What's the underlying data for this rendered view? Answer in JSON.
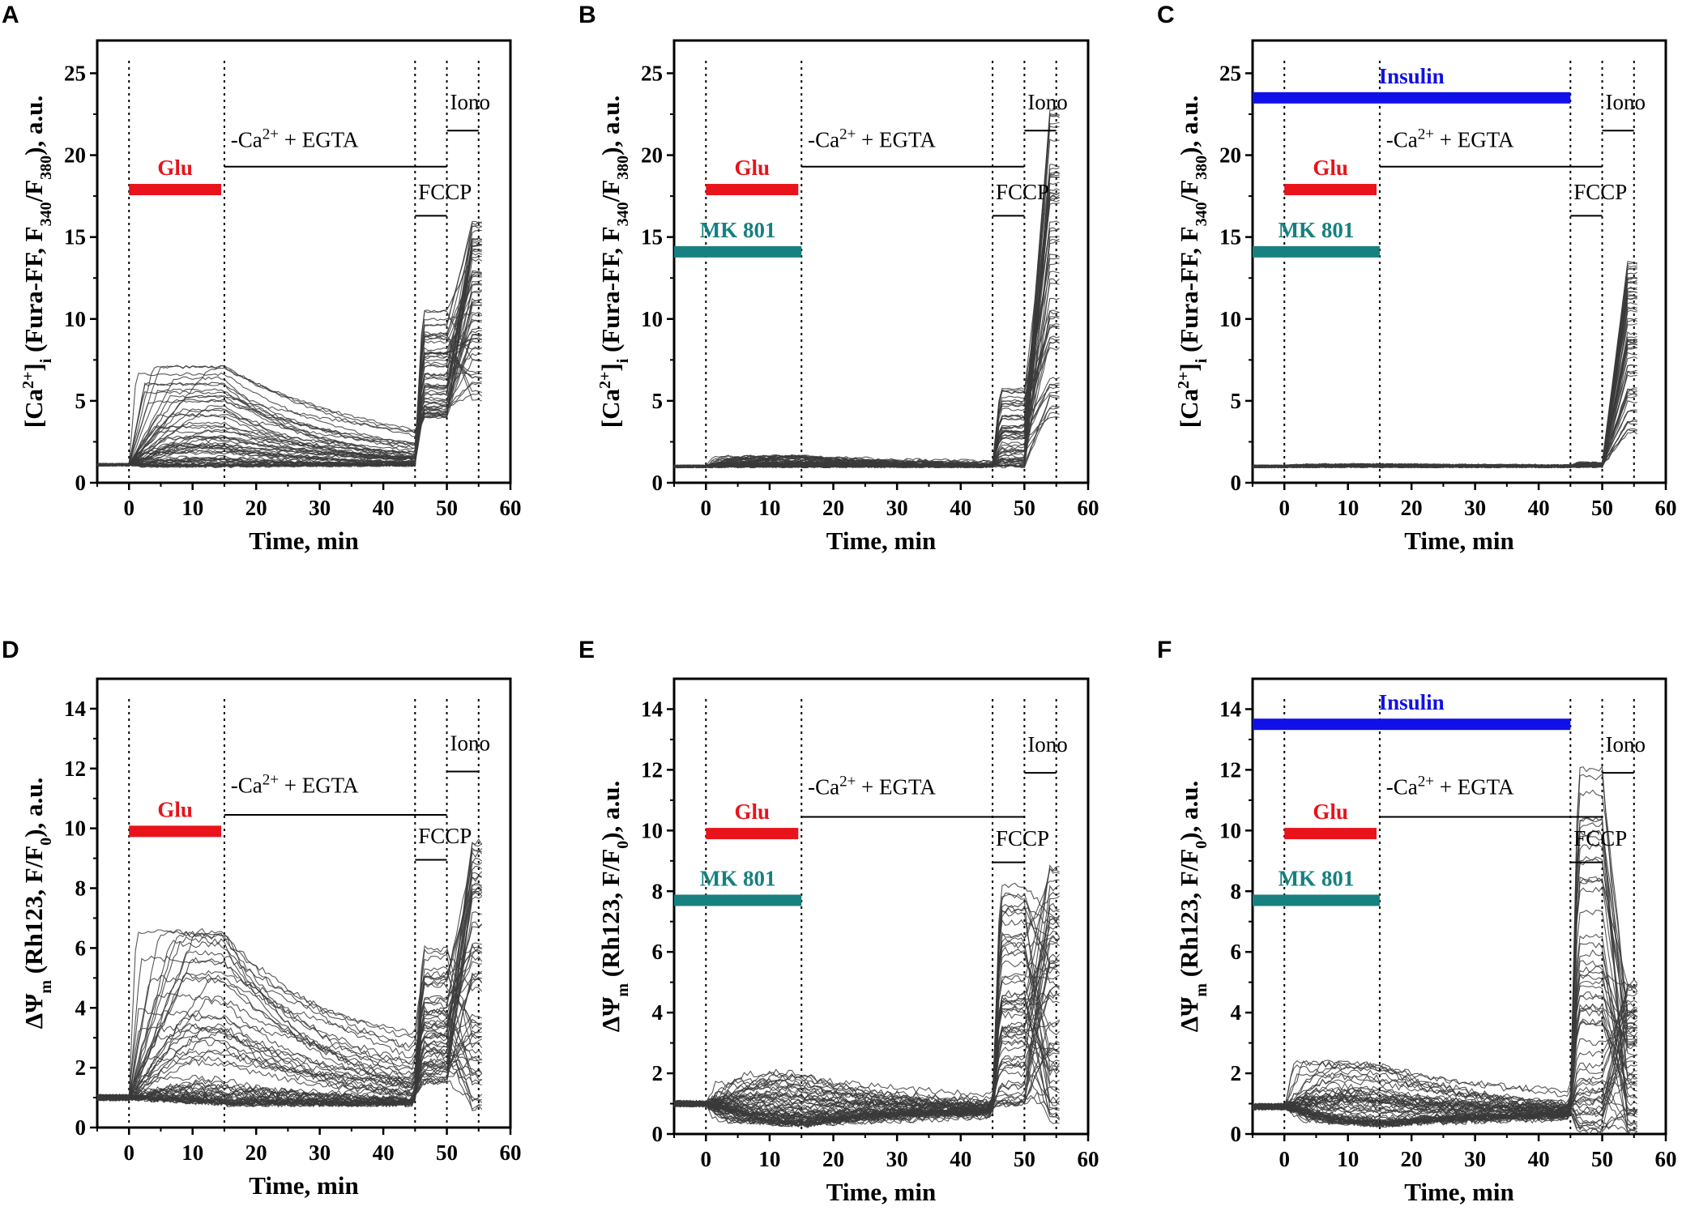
{
  "colors": {
    "glu": "#e8131b",
    "mk801": "#178080",
    "insulin": "#1010e8",
    "trace": "#3a3a3a"
  },
  "chart_data": [
    {
      "id": "A",
      "type": "line",
      "letter": "A",
      "title": "",
      "xlabel": "Time, min",
      "ylabel_parts": [
        "[Ca",
        "2+",
        "]",
        "i",
        " (Fura-FF, F",
        "340",
        "/F",
        "380",
        "), a.u."
      ],
      "xlim": [
        -5,
        60
      ],
      "ylim": [
        0,
        27
      ],
      "xticks": [
        0,
        10,
        20,
        30,
        40,
        50,
        60
      ],
      "yticks": [
        0,
        5,
        10,
        15,
        20,
        25
      ],
      "vlines": [
        0,
        15,
        45,
        50,
        55
      ],
      "bars": [
        {
          "label": "Glu",
          "x0": 0,
          "x1": 14.5,
          "y": 17.9,
          "color": "glu"
        }
      ],
      "lines": [
        {
          "label": "-Ca2+ + EGTA",
          "x0": 15,
          "x1": 50,
          "y": 19.3,
          "text_x": 16,
          "text_y": 20.5
        },
        {
          "label": "FCCP",
          "x0": 45,
          "x1": 50,
          "y": 16.3,
          "text_x": 45.5,
          "text_y": 17.3
        },
        {
          "label": "Iono",
          "x0": 50,
          "x1": 55,
          "y": 21.5,
          "text_x": 50.5,
          "text_y": 22.8
        }
      ],
      "annotations": {
        "egta_prefix": "-Ca",
        "egta_sup": "2+",
        "egta_suffix": "+ EGTA",
        "fccp": "FCCP",
        "iono": "Iono",
        "glu": "Glu"
      },
      "series_profile": {
        "baseline": 1.1,
        "glu_peak_range": [
          1.0,
          7.3
        ],
        "fccp_range": [
          4.0,
          10.5
        ],
        "iono_range": [
          5.0,
          16.0
        ],
        "n_traces": 60
      }
    },
    {
      "id": "B",
      "type": "line",
      "letter": "B",
      "xlabel": "Time, min",
      "ylabel_parts": [
        "[Ca",
        "2+",
        "]",
        "i",
        " (Fura-FF, F",
        "340",
        "/F",
        "380",
        "), a.u."
      ],
      "xlim": [
        -5,
        60
      ],
      "ylim": [
        0,
        27
      ],
      "xticks": [
        0,
        10,
        20,
        30,
        40,
        50,
        60
      ],
      "yticks": [
        0,
        5,
        10,
        15,
        20,
        25
      ],
      "vlines": [
        0,
        15,
        45,
        50,
        55
      ],
      "bars": [
        {
          "label": "Glu",
          "x0": 0,
          "x1": 14.5,
          "y": 17.9,
          "color": "glu"
        },
        {
          "label": "MK 801",
          "x0": -5,
          "x1": 15,
          "y": 14.1,
          "color": "mk801"
        }
      ],
      "lines": [
        {
          "label": "-Ca2+ + EGTA",
          "x0": 15,
          "x1": 50,
          "y": 19.3,
          "text_x": 16,
          "text_y": 20.5
        },
        {
          "label": "FCCP",
          "x0": 45,
          "x1": 50,
          "y": 16.3,
          "text_x": 45.5,
          "text_y": 17.3
        },
        {
          "label": "Iono",
          "x0": 50,
          "x1": 55,
          "y": 21.5,
          "text_x": 50.5,
          "text_y": 22.8
        }
      ],
      "annotations": {
        "egta_prefix": "-Ca",
        "egta_sup": "2+",
        "egta_suffix": "+ EGTA",
        "fccp": "FCCP",
        "iono": "Iono",
        "glu": "Glu",
        "mk801": "MK 801"
      },
      "series_profile": {
        "baseline": 1.0,
        "glu_peak_range": [
          1.0,
          1.7
        ],
        "fccp_range": [
          1.0,
          6.0
        ],
        "iono_range": [
          4.0,
          23.0
        ],
        "n_traces": 60
      }
    },
    {
      "id": "C",
      "type": "line",
      "letter": "C",
      "xlabel": "Time, min",
      "ylabel_parts": [
        "[Ca",
        "2+",
        "]",
        "i",
        " (Fura-FF, F",
        "340",
        "/F",
        "380",
        "), a.u."
      ],
      "xlim": [
        -5,
        60
      ],
      "ylim": [
        0,
        27
      ],
      "xticks": [
        0,
        10,
        20,
        30,
        40,
        50,
        60
      ],
      "yticks": [
        0,
        5,
        10,
        15,
        20,
        25
      ],
      "vlines": [
        0,
        15,
        45,
        50,
        55
      ],
      "bars": [
        {
          "label": "Glu",
          "x0": 0,
          "x1": 14.5,
          "y": 17.9,
          "color": "glu"
        },
        {
          "label": "MK 801",
          "x0": -5,
          "x1": 15,
          "y": 14.1,
          "color": "mk801"
        },
        {
          "label": "Insulin",
          "x0": -5,
          "x1": 45,
          "y": 23.5,
          "color": "insulin"
        }
      ],
      "lines": [
        {
          "label": "-Ca2+ + EGTA",
          "x0": 15,
          "x1": 50,
          "y": 19.3,
          "text_x": 16,
          "text_y": 20.5
        },
        {
          "label": "FCCP",
          "x0": 45,
          "x1": 50,
          "y": 16.3,
          "text_x": 45.5,
          "text_y": 17.3
        },
        {
          "label": "Iono",
          "x0": 50,
          "x1": 55,
          "y": 21.5,
          "text_x": 50.5,
          "text_y": 22.8
        }
      ],
      "annotations": {
        "egta_prefix": "-Ca",
        "egta_sup": "2+",
        "egta_suffix": "+ EGTA",
        "fccp": "FCCP",
        "iono": "Iono",
        "glu": "Glu",
        "mk801": "MK 801",
        "insulin": "Insulin"
      },
      "series_profile": {
        "baseline": 1.0,
        "glu_peak_range": [
          1.0,
          1.1
        ],
        "fccp_range": [
          1.0,
          1.2
        ],
        "iono_range": [
          3.0,
          13.5
        ],
        "n_traces": 60
      }
    },
    {
      "id": "D",
      "type": "line",
      "letter": "D",
      "xlabel": "Time, min",
      "ylabel_parts": [
        "ΔΨ",
        "m",
        " (Rh123, F/F",
        "0",
        "), a.u."
      ],
      "xlim": [
        -5,
        60
      ],
      "ylim": [
        0,
        15
      ],
      "xticks": [
        0,
        10,
        20,
        30,
        40,
        50,
        60
      ],
      "yticks": [
        0,
        2,
        4,
        6,
        8,
        10,
        12,
        14
      ],
      "vlines": [
        0,
        15,
        45,
        50,
        55
      ],
      "bars": [
        {
          "label": "Glu",
          "x0": 0,
          "x1": 14.5,
          "y": 9.9,
          "color": "glu"
        }
      ],
      "lines": [
        {
          "label": "-Ca2+ + EGTA",
          "x0": 15,
          "x1": 50,
          "y": 10.45,
          "text_x": 16,
          "text_y": 11.2
        },
        {
          "label": "FCCP",
          "x0": 45,
          "x1": 50,
          "y": 8.95,
          "text_x": 45.5,
          "text_y": 9.5
        },
        {
          "label": "Iono",
          "x0": 50,
          "x1": 55,
          "y": 11.9,
          "text_x": 50.5,
          "text_y": 12.6
        }
      ],
      "annotations": {
        "egta_prefix": "-Ca",
        "egta_sup": "2+",
        "egta_suffix": "+ EGTA",
        "fccp": "FCCP",
        "iono": "Iono",
        "glu": "Glu"
      },
      "series_profile": {
        "baseline": 1.0,
        "glu_peak_range": [
          1.0,
          6.8
        ],
        "fccp_range": [
          1.5,
          6.1
        ],
        "iono_range": [
          0.5,
          10.3
        ],
        "n_traces": 60
      }
    },
    {
      "id": "E",
      "type": "line",
      "letter": "E",
      "xlabel": "Time, min",
      "ylabel_parts": [
        "ΔΨ",
        "m",
        " (Rh123, F/F",
        "0",
        "), a.u."
      ],
      "xlim": [
        -5,
        60
      ],
      "ylim": [
        0,
        15
      ],
      "xticks": [
        0,
        10,
        20,
        30,
        40,
        50,
        60
      ],
      "yticks": [
        0,
        2,
        4,
        6,
        8,
        10,
        12,
        14
      ],
      "vlines": [
        0,
        15,
        45,
        50,
        55
      ],
      "bars": [
        {
          "label": "Glu",
          "x0": 0,
          "x1": 14.5,
          "y": 9.9,
          "color": "glu"
        },
        {
          "label": "MK 801",
          "x0": -5,
          "x1": 15,
          "y": 7.7,
          "color": "mk801"
        }
      ],
      "lines": [
        {
          "label": "-Ca2+ + EGTA",
          "x0": 15,
          "x1": 50,
          "y": 10.45,
          "text_x": 16,
          "text_y": 11.2
        },
        {
          "label": "FCCP",
          "x0": 45,
          "x1": 50,
          "y": 8.95,
          "text_x": 45.5,
          "text_y": 9.5
        },
        {
          "label": "Iono",
          "x0": 50,
          "x1": 55,
          "y": 11.9,
          "text_x": 50.5,
          "text_y": 12.6
        }
      ],
      "annotations": {
        "egta_prefix": "-Ca",
        "egta_sup": "2+",
        "egta_suffix": "+ EGTA",
        "fccp": "FCCP",
        "iono": "Iono",
        "glu": "Glu",
        "mk801": "MK 801"
      },
      "series_profile": {
        "baseline": 1.0,
        "glu_peak_range": [
          0.5,
          2.2
        ],
        "fccp_range": [
          1.0,
          8.7
        ],
        "iono_range": [
          0.3,
          8.8
        ],
        "n_traces": 60
      }
    },
    {
      "id": "F",
      "type": "line",
      "letter": "F",
      "xlabel": "Time, min",
      "ylabel_parts": [
        "ΔΨ",
        "m",
        " (Rh123, F/F",
        "0",
        "), a.u."
      ],
      "xlim": [
        -5,
        60
      ],
      "ylim": [
        0,
        15
      ],
      "xticks": [
        0,
        10,
        20,
        30,
        40,
        50,
        60
      ],
      "yticks": [
        0,
        2,
        4,
        6,
        8,
        10,
        12,
        14
      ],
      "vlines": [
        0,
        15,
        45,
        50,
        55
      ],
      "bars": [
        {
          "label": "Glu",
          "x0": 0,
          "x1": 14.5,
          "y": 9.9,
          "color": "glu"
        },
        {
          "label": "MK 801",
          "x0": -5,
          "x1": 15,
          "y": 7.7,
          "color": "mk801"
        },
        {
          "label": "Insulin",
          "x0": -5,
          "x1": 45,
          "y": 13.5,
          "color": "insulin"
        }
      ],
      "lines": [
        {
          "label": "-Ca2+ + EGTA",
          "x0": 15,
          "x1": 50,
          "y": 10.45,
          "text_x": 16,
          "text_y": 11.2
        },
        {
          "label": "FCCP",
          "x0": 45,
          "x1": 50,
          "y": 8.95,
          "text_x": 45.5,
          "text_y": 9.5
        },
        {
          "label": "Iono",
          "x0": 50,
          "x1": 55,
          "y": 11.9,
          "text_x": 50.5,
          "text_y": 12.6
        }
      ],
      "annotations": {
        "egta_prefix": "-Ca",
        "egta_sup": "2+",
        "egta_suffix": "+ EGTA",
        "fccp": "FCCP",
        "iono": "Iono",
        "glu": "Glu",
        "mk801": "MK 801",
        "insulin": "Insulin"
      },
      "series_profile": {
        "baseline": 0.9,
        "glu_peak_range": [
          0.5,
          2.6
        ],
        "fccp_range": [
          0.0,
          12.2
        ],
        "iono_range": [
          0.0,
          5.0
        ],
        "n_traces": 60
      }
    }
  ]
}
